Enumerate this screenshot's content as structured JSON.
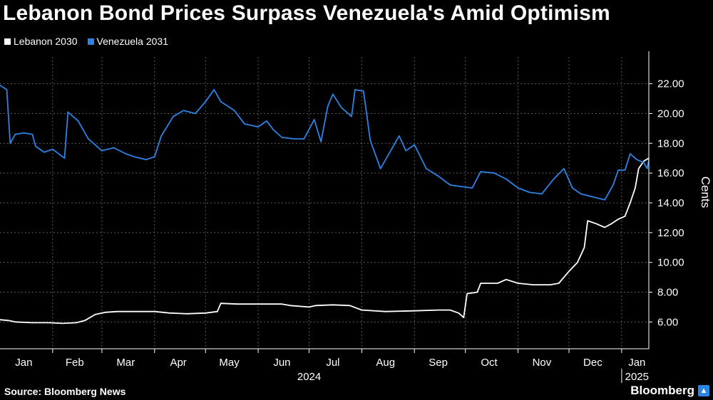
{
  "title": "Lebanon Bond Prices Surpass Venezuela's Amid Optimism",
  "source": "Source: Bloomberg News",
  "brand": "Bloomberg",
  "brand_icon": "bloomberg-terminal-icon",
  "colors": {
    "background": "#000000",
    "lebanon": "#ffffff",
    "venezuela": "#2d83e6",
    "grid": "#5a5a5a"
  },
  "chart_data": {
    "type": "line",
    "title": "Lebanon Bond Prices Surpass Venezuela's Amid Optimism",
    "xlabel": "",
    "ylabel": "Cents",
    "ylim": [
      4.2,
      23.8
    ],
    "yticks": [
      "6.00",
      "8.00",
      "10.00",
      "12.00",
      "14.00",
      "16.00",
      "18.00",
      "20.00",
      "22.00"
    ],
    "ytick_values": [
      6,
      8,
      10,
      12,
      14,
      16,
      18,
      20,
      22
    ],
    "grid": true,
    "legend_position": "top-left",
    "x_range": [
      "2024-01-01",
      "2025-01-17"
    ],
    "x_month_labels": [
      {
        "label": "Jan",
        "date": "2024-01-15"
      },
      {
        "label": "Feb",
        "date": "2024-02-14"
      },
      {
        "label": "Mar",
        "date": "2024-03-15"
      },
      {
        "label": "Apr",
        "date": "2024-04-15"
      },
      {
        "label": "May",
        "date": "2024-05-15"
      },
      {
        "label": "Jun",
        "date": "2024-06-15"
      },
      {
        "label": "Jul",
        "date": "2024-07-15"
      },
      {
        "label": "Aug",
        "date": "2024-08-15"
      },
      {
        "label": "Sep",
        "date": "2024-09-15"
      },
      {
        "label": "Oct",
        "date": "2024-10-15"
      },
      {
        "label": "Nov",
        "date": "2024-11-15"
      },
      {
        "label": "Dec",
        "date": "2024-12-15"
      },
      {
        "label": "Jan",
        "date": "2025-01-10"
      }
    ],
    "x_year_labels": [
      {
        "label": "2024",
        "date": "2024-07-01"
      },
      {
        "label": "2025",
        "date": "2025-01-10"
      }
    ],
    "series": [
      {
        "name": "Lebanon 2030",
        "points": [
          [
            "2024-01-01",
            6.15
          ],
          [
            "2024-01-06",
            6.1
          ],
          [
            "2024-01-10",
            6.0
          ],
          [
            "2024-01-20",
            5.95
          ],
          [
            "2024-01-30",
            5.95
          ],
          [
            "2024-02-07",
            5.9
          ],
          [
            "2024-02-15",
            5.95
          ],
          [
            "2024-02-20",
            6.1
          ],
          [
            "2024-02-26",
            6.5
          ],
          [
            "2024-03-03",
            6.65
          ],
          [
            "2024-03-10",
            6.7
          ],
          [
            "2024-03-20",
            6.7
          ],
          [
            "2024-04-01",
            6.7
          ],
          [
            "2024-04-10",
            6.6
          ],
          [
            "2024-04-20",
            6.55
          ],
          [
            "2024-05-01",
            6.6
          ],
          [
            "2024-05-08",
            6.7
          ],
          [
            "2024-05-10",
            7.25
          ],
          [
            "2024-05-20",
            7.2
          ],
          [
            "2024-06-01",
            7.2
          ],
          [
            "2024-06-15",
            7.2
          ],
          [
            "2024-06-20",
            7.1
          ],
          [
            "2024-07-01",
            7.0
          ],
          [
            "2024-07-05",
            7.1
          ],
          [
            "2024-07-15",
            7.15
          ],
          [
            "2024-07-25",
            7.1
          ],
          [
            "2024-08-01",
            6.8
          ],
          [
            "2024-08-15",
            6.7
          ],
          [
            "2024-09-01",
            6.75
          ],
          [
            "2024-09-15",
            6.8
          ],
          [
            "2024-09-22",
            6.8
          ],
          [
            "2024-09-27",
            6.6
          ],
          [
            "2024-09-30",
            6.3
          ],
          [
            "2024-10-02",
            7.9
          ],
          [
            "2024-10-08",
            8.0
          ],
          [
            "2024-10-10",
            8.6
          ],
          [
            "2024-10-20",
            8.6
          ],
          [
            "2024-10-25",
            8.85
          ],
          [
            "2024-11-01",
            8.6
          ],
          [
            "2024-11-10",
            8.5
          ],
          [
            "2024-11-20",
            8.5
          ],
          [
            "2024-11-25",
            8.6
          ],
          [
            "2024-12-01",
            9.4
          ],
          [
            "2024-12-06",
            10.0
          ],
          [
            "2024-12-10",
            11.0
          ],
          [
            "2024-12-12",
            12.8
          ],
          [
            "2024-12-17",
            12.6
          ],
          [
            "2024-12-22",
            12.35
          ],
          [
            "2024-12-26",
            12.6
          ],
          [
            "2024-12-30",
            12.9
          ],
          [
            "2025-01-03",
            13.1
          ],
          [
            "2025-01-06",
            14.0
          ],
          [
            "2025-01-09",
            15.0
          ],
          [
            "2025-01-11",
            16.3
          ],
          [
            "2025-01-14",
            16.8
          ],
          [
            "2025-01-17",
            17.0
          ]
        ]
      },
      {
        "name": "Venezuela 2031",
        "points": [
          [
            "2024-01-01",
            21.9
          ],
          [
            "2024-01-05",
            21.6
          ],
          [
            "2024-01-07",
            18.0
          ],
          [
            "2024-01-10",
            18.6
          ],
          [
            "2024-01-15",
            18.7
          ],
          [
            "2024-01-20",
            18.6
          ],
          [
            "2024-01-22",
            17.8
          ],
          [
            "2024-01-27",
            17.4
          ],
          [
            "2024-02-01",
            17.6
          ],
          [
            "2024-02-08",
            17.0
          ],
          [
            "2024-02-10",
            20.1
          ],
          [
            "2024-02-16",
            19.5
          ],
          [
            "2024-02-22",
            18.3
          ],
          [
            "2024-03-01",
            17.5
          ],
          [
            "2024-03-08",
            17.7
          ],
          [
            "2024-03-15",
            17.3
          ],
          [
            "2024-03-20",
            17.1
          ],
          [
            "2024-03-27",
            16.9
          ],
          [
            "2024-04-01",
            17.1
          ],
          [
            "2024-04-05",
            18.5
          ],
          [
            "2024-04-12",
            19.8
          ],
          [
            "2024-04-18",
            20.2
          ],
          [
            "2024-04-25",
            20.0
          ],
          [
            "2024-05-01",
            20.8
          ],
          [
            "2024-05-06",
            21.6
          ],
          [
            "2024-05-10",
            20.8
          ],
          [
            "2024-05-18",
            20.2
          ],
          [
            "2024-05-24",
            19.3
          ],
          [
            "2024-06-01",
            19.1
          ],
          [
            "2024-06-06",
            19.5
          ],
          [
            "2024-06-10",
            18.9
          ],
          [
            "2024-06-15",
            18.4
          ],
          [
            "2024-06-22",
            18.3
          ],
          [
            "2024-06-28",
            18.3
          ],
          [
            "2024-07-04",
            19.6
          ],
          [
            "2024-07-08",
            18.1
          ],
          [
            "2024-07-12",
            20.5
          ],
          [
            "2024-07-15",
            21.3
          ],
          [
            "2024-07-20",
            20.4
          ],
          [
            "2024-07-26",
            19.8
          ],
          [
            "2024-07-28",
            21.6
          ],
          [
            "2024-08-02",
            21.5
          ],
          [
            "2024-08-06",
            18.2
          ],
          [
            "2024-08-12",
            16.3
          ],
          [
            "2024-08-18",
            17.5
          ],
          [
            "2024-08-23",
            18.5
          ],
          [
            "2024-08-27",
            17.5
          ],
          [
            "2024-09-01",
            17.9
          ],
          [
            "2024-09-08",
            16.3
          ],
          [
            "2024-09-15",
            15.8
          ],
          [
            "2024-09-22",
            15.2
          ],
          [
            "2024-09-28",
            15.1
          ],
          [
            "2024-10-05",
            15.0
          ],
          [
            "2024-10-10",
            16.1
          ],
          [
            "2024-10-18",
            16.0
          ],
          [
            "2024-10-25",
            15.6
          ],
          [
            "2024-11-01",
            15.0
          ],
          [
            "2024-11-08",
            14.7
          ],
          [
            "2024-11-15",
            14.6
          ],
          [
            "2024-11-22",
            15.6
          ],
          [
            "2024-11-28",
            16.3
          ],
          [
            "2024-12-03",
            15.0
          ],
          [
            "2024-12-08",
            14.6
          ],
          [
            "2024-12-15",
            14.4
          ],
          [
            "2024-12-22",
            14.2
          ],
          [
            "2024-12-27",
            15.2
          ],
          [
            "2024-12-30",
            16.2
          ],
          [
            "2025-01-03",
            16.2
          ],
          [
            "2025-01-06",
            17.3
          ],
          [
            "2025-01-10",
            16.9
          ],
          [
            "2025-01-14",
            16.7
          ],
          [
            "2025-01-16",
            16.3
          ],
          [
            "2025-01-17",
            16.9
          ]
        ]
      }
    ]
  }
}
